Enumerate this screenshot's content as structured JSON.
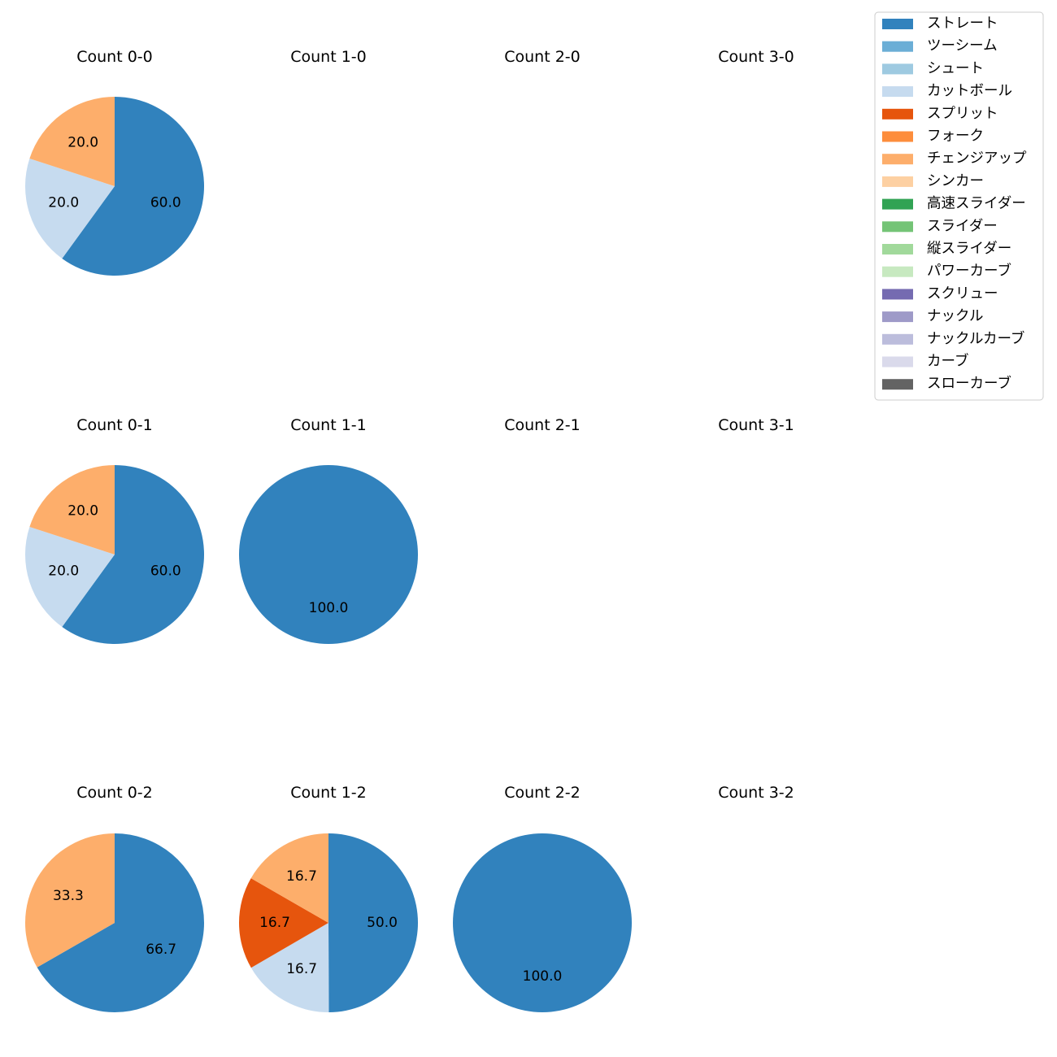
{
  "legend": {
    "entries": [
      {
        "label": "ストレート",
        "color": "#3182bd"
      },
      {
        "label": "ツーシーム",
        "color": "#6baed6"
      },
      {
        "label": "シュート",
        "color": "#9ecae1"
      },
      {
        "label": "カットボール",
        "color": "#c6dbef"
      },
      {
        "label": "スプリット",
        "color": "#e6550d"
      },
      {
        "label": "フォーク",
        "color": "#fd8d3c"
      },
      {
        "label": "チェンジアップ",
        "color": "#fdae6b"
      },
      {
        "label": "シンカー",
        "color": "#fdd0a2"
      },
      {
        "label": "高速スライダー",
        "color": "#31a354"
      },
      {
        "label": "スライダー",
        "color": "#74c476"
      },
      {
        "label": "縦スライダー",
        "color": "#a1d99b"
      },
      {
        "label": "パワーカーブ",
        "color": "#c7e9c0"
      },
      {
        "label": "スクリュー",
        "color": "#756bb1"
      },
      {
        "label": "ナックル",
        "color": "#9e9ac8"
      },
      {
        "label": "ナックルカーブ",
        "color": "#bcbddc"
      },
      {
        "label": "カーブ",
        "color": "#dadaeb"
      },
      {
        "label": "スローカーブ",
        "color": "#636363"
      }
    ]
  },
  "chart_data": [
    {
      "type": "pie",
      "title": "Count 0-0",
      "labels": [
        "ストレート",
        "カットボール",
        "チェンジアップ"
      ],
      "values": [
        60.0,
        20.0,
        20.0
      ],
      "value_labels": [
        "60.0",
        "20.0",
        "20.0"
      ]
    },
    {
      "type": "pie",
      "title": "Count 1-0",
      "labels": [],
      "values": [],
      "value_labels": []
    },
    {
      "type": "pie",
      "title": "Count 2-0",
      "labels": [],
      "values": [],
      "value_labels": []
    },
    {
      "type": "pie",
      "title": "Count 3-0",
      "labels": [],
      "values": [],
      "value_labels": []
    },
    {
      "type": "pie",
      "title": "Count 0-1",
      "labels": [
        "ストレート",
        "カットボール",
        "チェンジアップ"
      ],
      "values": [
        60.0,
        20.0,
        20.0
      ],
      "value_labels": [
        "60.0",
        "20.0",
        "20.0"
      ]
    },
    {
      "type": "pie",
      "title": "Count 1-1",
      "labels": [
        "ストレート"
      ],
      "values": [
        100.0
      ],
      "value_labels": [
        "100.0"
      ]
    },
    {
      "type": "pie",
      "title": "Count 2-1",
      "labels": [],
      "values": [],
      "value_labels": []
    },
    {
      "type": "pie",
      "title": "Count 3-1",
      "labels": [],
      "values": [],
      "value_labels": []
    },
    {
      "type": "pie",
      "title": "Count 0-2",
      "labels": [
        "ストレート",
        "チェンジアップ"
      ],
      "values": [
        66.7,
        33.3
      ],
      "value_labels": [
        "66.7",
        "33.3"
      ]
    },
    {
      "type": "pie",
      "title": "Count 1-2",
      "labels": [
        "ストレート",
        "カットボール",
        "スプリット",
        "チェンジアップ"
      ],
      "values": [
        50.0,
        16.7,
        16.7,
        16.7
      ],
      "value_labels": [
        "50.0",
        "16.7",
        "16.7",
        "16.7"
      ]
    },
    {
      "type": "pie",
      "title": "Count 2-2",
      "labels": [
        "ストレート"
      ],
      "values": [
        100.0
      ],
      "value_labels": [
        "100.0"
      ]
    },
    {
      "type": "pie",
      "title": "Count 3-2",
      "labels": [],
      "values": [],
      "value_labels": []
    }
  ]
}
